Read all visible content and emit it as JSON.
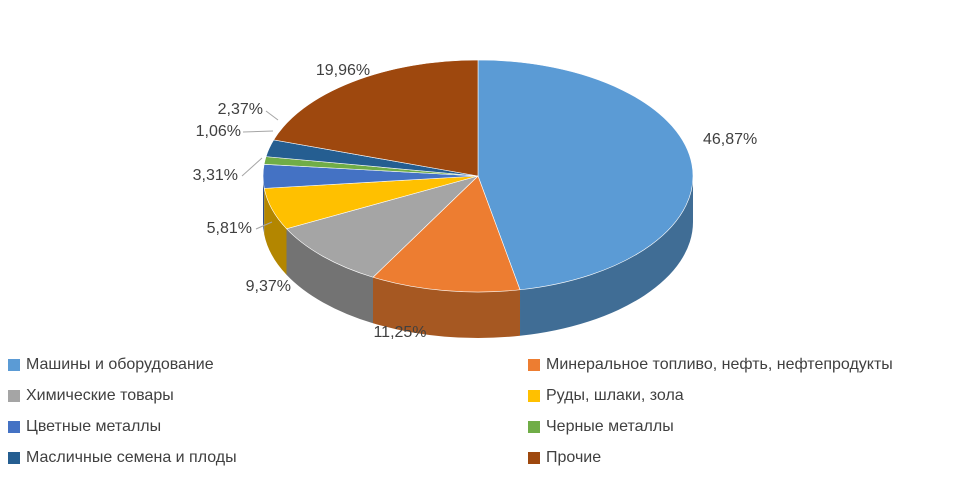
{
  "chart_data": {
    "type": "pie",
    "style": "3d",
    "title": "",
    "series": [
      {
        "name": "",
        "categories": [
          "Машины и оборудование",
          "Минеральное топливо, нефть, нефтепродукты",
          "Химические товары",
          "Руды, шлаки, зола",
          "Цветные металлы",
          "Черные металлы",
          "Масличные семена и плоды",
          "Прочие"
        ],
        "values": [
          46.87,
          11.25,
          9.37,
          5.81,
          3.31,
          1.06,
          2.37,
          19.96
        ],
        "labels": [
          "46,87%",
          "11,25%",
          "9,37%",
          "5,81%",
          "3,31%",
          "1,06%",
          "2,37%",
          "19,96%"
        ],
        "colors": [
          "#5b9bd5",
          "#ed7d31",
          "#a5a5a5",
          "#ffc000",
          "#4472c4",
          "#70ad47",
          "#255e91",
          "#9e480e"
        ]
      }
    ],
    "legend": {
      "position": "bottom",
      "columns": 2
    }
  }
}
